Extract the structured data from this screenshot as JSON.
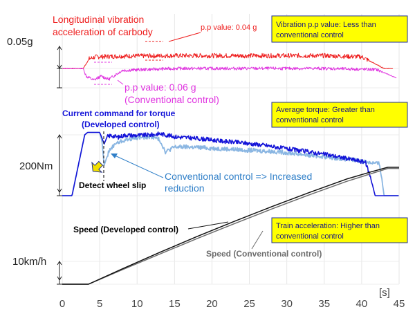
{
  "chart_data": {
    "type": "line",
    "x_axis": {
      "ticks": [
        0,
        5,
        10,
        15,
        20,
        25,
        30,
        35,
        40,
        45
      ],
      "unit": "[s]",
      "range": [
        0,
        45
      ]
    },
    "panels": [
      {
        "id": "vibration",
        "scale_label": "0.05g",
        "title_lines": [
          "Longitudinal vibration",
          "acceleration of carbody"
        ],
        "series": [
          {
            "name": "Developed control",
            "color": "#ee1c1c",
            "x": [
              0,
              2.8,
              3.6,
              4.5,
              8,
              15,
              25,
              35,
              40,
              41.5,
              43,
              44.2
            ],
            "y": [
              0,
              0,
              0.025,
              0.03,
              0.032,
              0.033,
              0.033,
              0.033,
              0.03,
              0.015,
              0.0,
              0.0
            ]
          },
          {
            "name": "Conventional control",
            "color": "#e036e0",
            "x": [
              0,
              2.8,
              3.2,
              4.2,
              5.2,
              6.2,
              8,
              15,
              25,
              35,
              42,
              43.5,
              44.7
            ],
            "y": [
              0,
              0,
              -0.02,
              -0.03,
              -0.02,
              -0.028,
              -0.005,
              0,
              0,
              0,
              -0.003,
              -0.015,
              -0.025
            ]
          }
        ],
        "notes": {
          "pp_dev": "p.p value: 0.04 g",
          "pp_conv_1": "p.p value: 0.06 g",
          "pp_conv_2": "(Conventional control)",
          "box": [
            "Vibration p.p value: Less than",
            "conventional control"
          ]
        }
      },
      {
        "id": "torque",
        "scale_label": "200Nm",
        "title_lines": [
          "Current command for torque",
          "(Developed control)"
        ],
        "series": [
          {
            "name": "Developed control",
            "color": "#1414d8",
            "x": [
              0,
              1.3,
              3.0,
              3.4,
              5.0,
              5.3,
              5.6,
              6.0,
              6.5,
              7.5,
              8.5,
              9.5,
              12,
              13,
              15,
              17,
              19,
              21,
              24,
              27,
              30,
              33,
              36,
              38.5,
              40.5,
              41.2,
              41.8,
              42.5,
              45
            ],
            "y": [
              0,
              0,
              1.0,
              1.04,
              1.04,
              0.95,
              0.85,
              0.97,
              0.99,
              0.96,
              1.0,
              0.99,
              1.0,
              1.02,
              0.97,
              0.95,
              0.93,
              0.9,
              0.87,
              0.83,
              0.77,
              0.72,
              0.66,
              0.6,
              0.55,
              0.3,
              0.0,
              0.0,
              0.0
            ]
          },
          {
            "name": "Conventional control",
            "color": "#8ab6e2",
            "x": [
              0,
              1.3,
              3.0,
              3.4,
              5.0,
              5.3,
              5.6,
              6.2,
              7,
              8,
              9.5,
              12,
              13,
              13.8,
              15,
              17,
              20,
              23,
              26,
              29,
              32,
              35,
              38,
              41,
              42.4,
              43.0,
              43.8,
              45
            ],
            "y": [
              0,
              0,
              1.0,
              1.04,
              1.04,
              0.9,
              0.5,
              0.72,
              0.85,
              0.9,
              0.95,
              0.97,
              0.92,
              0.72,
              0.8,
              0.8,
              0.78,
              0.76,
              0.74,
              0.72,
              0.68,
              0.64,
              0.6,
              0.55,
              0.52,
              0.0,
              0.0,
              0.0
            ]
          }
        ],
        "notes": {
          "slip": "Detect wheel slip",
          "conv_1": "Conventional control => Increased",
          "conv_2": "reduction",
          "box": [
            "Average torque: Greater than",
            "conventional control"
          ]
        }
      },
      {
        "id": "speed",
        "scale_label": "10km/h",
        "series": [
          {
            "name": "Speed (Developed control)",
            "color": "#111111",
            "x": [
              0,
              3.5,
              8,
              13,
              18,
              23,
              28,
              33,
              38,
              41.5,
              43.5,
              45
            ],
            "y": [
              0,
              0,
              2.6,
              5.4,
              8.1,
              10.7,
              13.2,
              15.6,
              17.9,
              19.2,
              19.9,
              19.9
            ]
          },
          {
            "name": "Speed (Conventional control)",
            "color": "#6d6d6d",
            "x": [
              0,
              3.5,
              8,
              13,
              18,
              23,
              28,
              33,
              38,
              41.5,
              43.5,
              45
            ],
            "y": [
              0,
              0,
              2.45,
              5.1,
              7.75,
              10.3,
              12.8,
              15.2,
              17.5,
              18.9,
              19.7,
              19.7
            ]
          }
        ],
        "notes": {
          "dev": "Speed (Developed control)",
          "conv": "Speed (Conventional control)",
          "box": [
            "Train acceleration: Higher than",
            "conventional control"
          ]
        }
      }
    ]
  }
}
